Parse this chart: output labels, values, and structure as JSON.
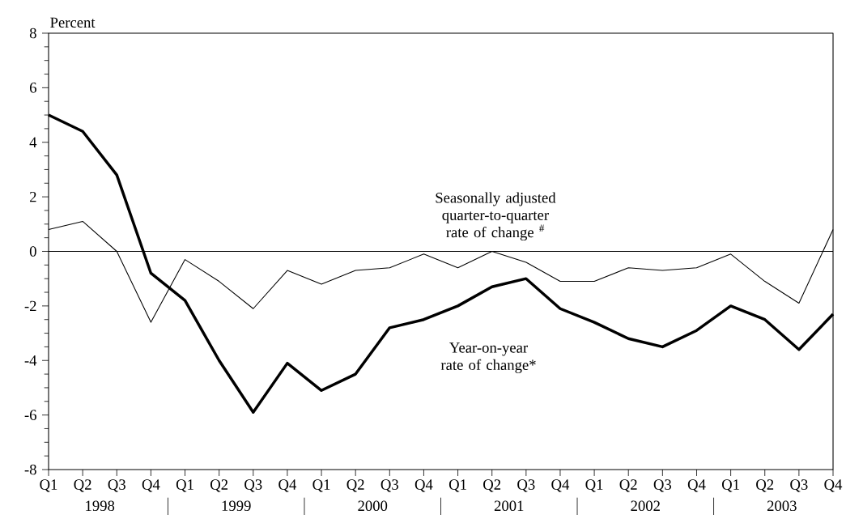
{
  "chart_data": {
    "type": "line",
    "ylabel": "Percent",
    "categories": [
      "Q1",
      "Q2",
      "Q3",
      "Q4",
      "Q1",
      "Q2",
      "Q3",
      "Q4",
      "Q1",
      "Q2",
      "Q3",
      "Q4",
      "Q1",
      "Q2",
      "Q3",
      "Q4",
      "Q1",
      "Q2",
      "Q3",
      "Q4",
      "Q1",
      "Q2",
      "Q3",
      "Q4"
    ],
    "series": [
      {
        "name": "Year-on-year rate of change*",
        "color": "#000000",
        "values": [
          5.0,
          4.4,
          2.8,
          -0.8,
          -1.8,
          -4.0,
          -5.9,
          -4.1,
          -5.1,
          -4.5,
          -2.8,
          -2.5,
          -2.0,
          -1.3,
          -1.0,
          -2.1,
          -2.6,
          -3.2,
          -3.5,
          -2.9,
          -2.0,
          -2.5,
          -3.6,
          -2.3
        ]
      },
      {
        "name": "Seasonally adjusted quarter-to-quarter rate of change $^{#}$",
        "color": "#000000",
        "values": [
          0.8,
          1.1,
          0.0,
          -2.6,
          -0.3,
          -1.1,
          -2.1,
          -0.7,
          -1.2,
          -0.7,
          -0.6,
          -0.1,
          -0.6,
          0.0,
          -0.4,
          -1.1,
          -1.1,
          -0.6,
          -0.7,
          -0.6,
          -0.1,
          -1.1,
          -1.9,
          0.8
        ]
      }
    ],
    "ylim": [
      -8,
      8
    ],
    "yticks": [
      -8,
      -6,
      -4,
      -2,
      0,
      2,
      4,
      6,
      8
    ],
    "ref_lines": [
      {
        "axis": "y",
        "value": 0
      }
    ],
    "annotations": [
      "1998",
      "1999",
      "2000",
      "2001",
      "2002",
      "2003"
    ],
    "grid": false,
    "marker": "none",
    "line_style": "solid"
  }
}
